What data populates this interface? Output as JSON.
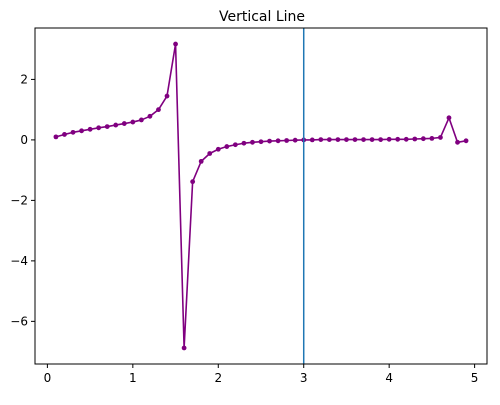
{
  "chart_data": {
    "type": "line",
    "title": "Vertical Line",
    "xlabel": "",
    "ylabel": "",
    "xlim": [
      -0.145,
      5.145
    ],
    "ylim": [
      -7.41,
      3.7
    ],
    "xticks": [
      0,
      1,
      2,
      3,
      4,
      5
    ],
    "yticks": [
      -6,
      -4,
      -2,
      0,
      2
    ],
    "grid": false,
    "legend": "none",
    "series": [
      {
        "color": "#800080",
        "marker": "circle",
        "x": [
          0.1,
          0.2,
          0.3,
          0.4,
          0.5,
          0.6,
          0.7,
          0.8,
          0.9,
          1.0,
          1.1,
          1.2,
          1.3,
          1.4,
          1.5,
          1.6,
          1.7,
          1.8,
          1.9,
          2.0,
          2.1,
          2.2,
          2.3,
          2.4,
          2.5,
          2.6,
          2.7,
          2.8,
          2.9,
          3.0,
          3.1,
          3.2,
          3.3,
          3.4,
          3.5,
          3.6,
          3.7,
          3.8,
          3.9,
          4.0,
          4.1,
          4.2,
          4.3,
          4.4,
          4.5,
          4.6,
          4.7,
          4.8,
          4.9
        ],
        "y": [
          0.1,
          0.18,
          0.25,
          0.3,
          0.35,
          0.4,
          0.44,
          0.49,
          0.54,
          0.59,
          0.66,
          0.78,
          1.0,
          1.45,
          3.17,
          -6.88,
          -1.38,
          -0.71,
          -0.45,
          -0.31,
          -0.22,
          -0.16,
          -0.11,
          -0.08,
          -0.06,
          -0.04,
          -0.03,
          -0.02,
          -0.01,
          0.0,
          0.0,
          0.01,
          0.01,
          0.01,
          0.01,
          0.01,
          0.01,
          0.01,
          0.01,
          0.02,
          0.02,
          0.02,
          0.03,
          0.04,
          0.05,
          0.08,
          0.73,
          -0.08,
          -0.03
        ]
      }
    ],
    "vline": {
      "x": 3.0,
      "color": "#1f77b4"
    }
  }
}
